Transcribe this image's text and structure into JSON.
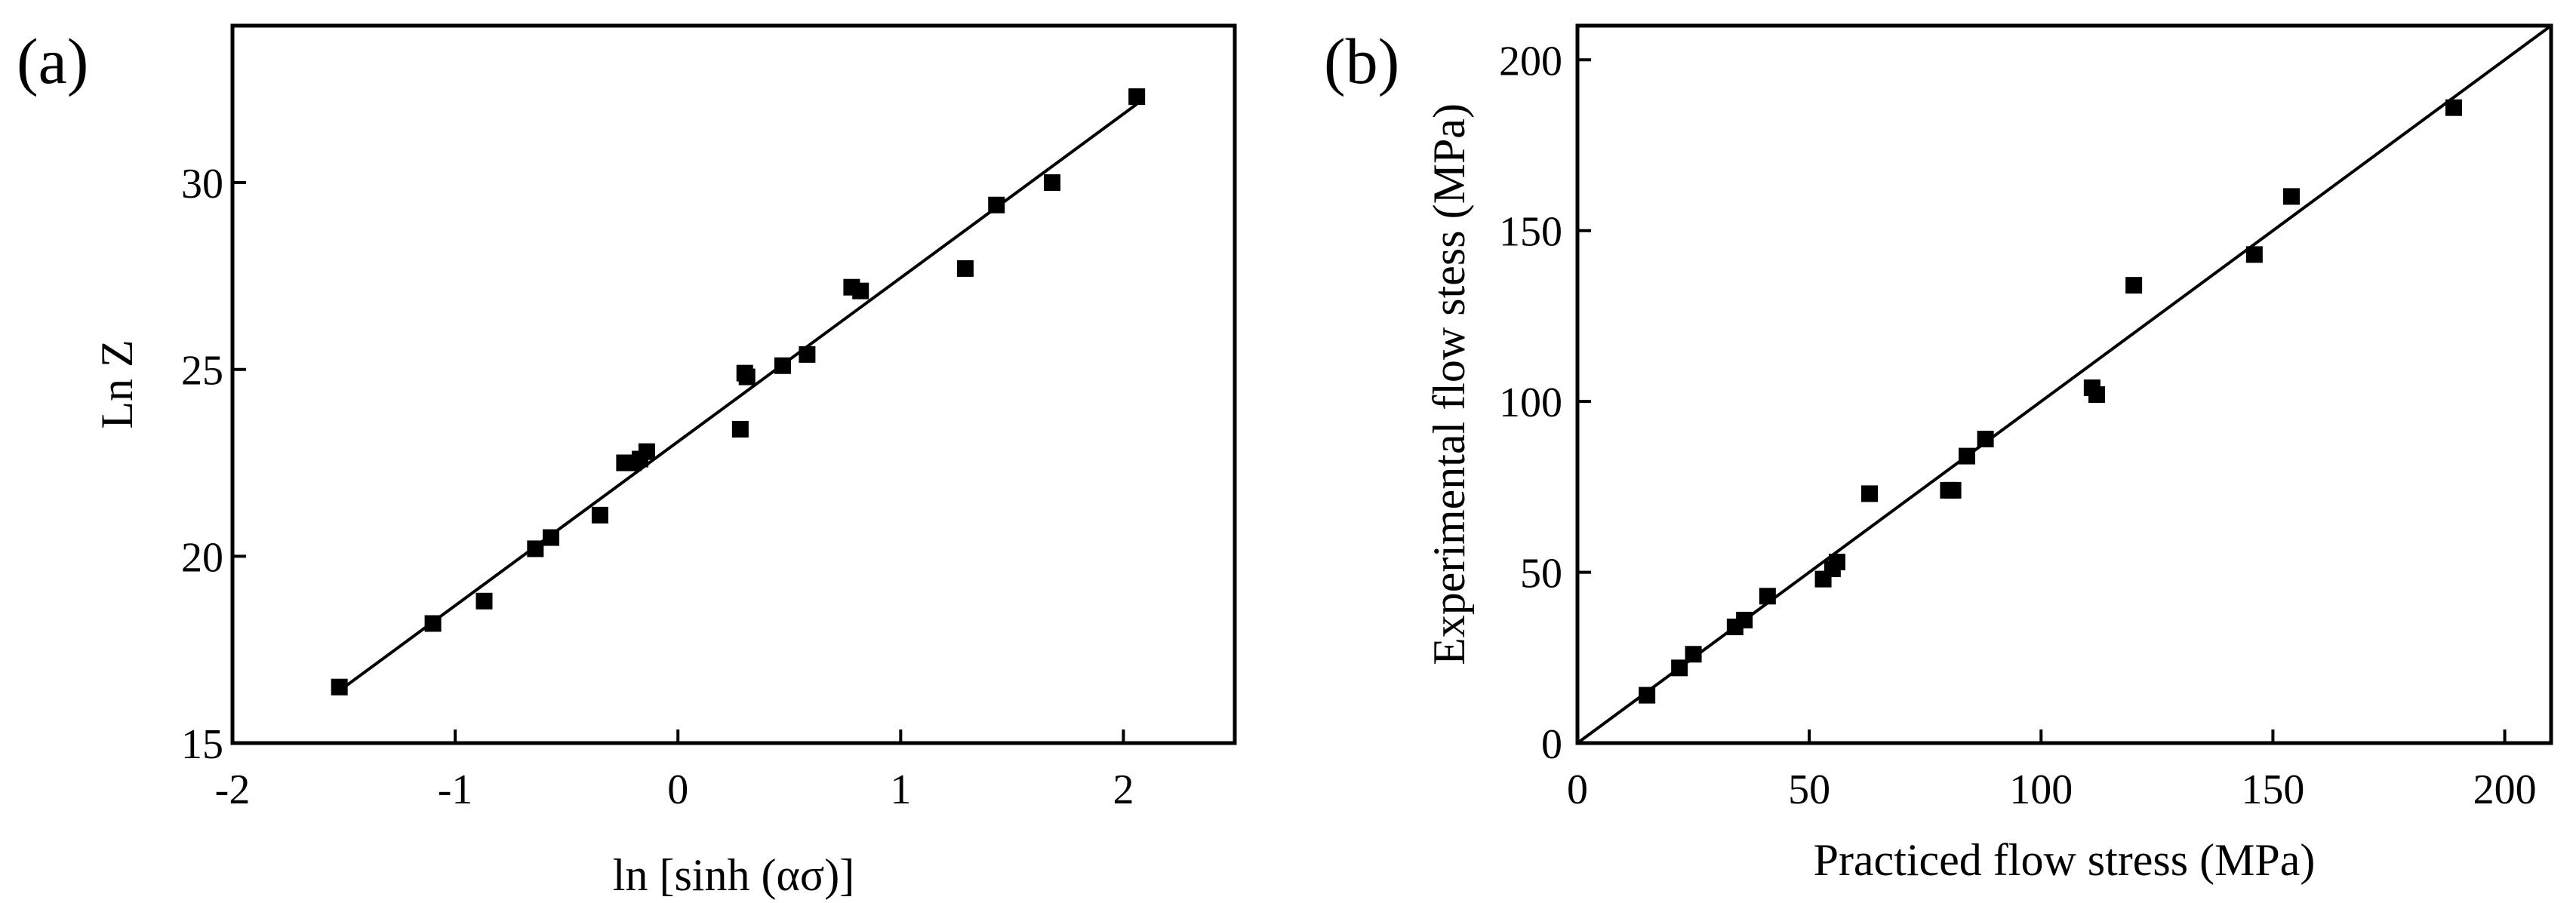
{
  "chart_data": [
    {
      "type": "scatter",
      "panel_label": "(a)",
      "title": "",
      "xlabel": "ln [sinh (ασ)]",
      "ylabel": "Ln Z",
      "xlim": [
        -2,
        2.5
      ],
      "ylim": [
        15,
        34.2
      ],
      "xticks": [
        -2,
        -1,
        0,
        1,
        2
      ],
      "xtick_labels": [
        "-2",
        "-1",
        "0",
        "1",
        "2"
      ],
      "yticks": [
        15,
        20,
        25,
        30
      ],
      "ytick_labels": [
        "15",
        "20",
        "25",
        "30"
      ],
      "grid": false,
      "legend": "none",
      "marker": "filled-square",
      "color": "#000000",
      "series": [
        {
          "points": [
            [
              -1.52,
              16.5
            ],
            [
              -1.1,
              18.2
            ],
            [
              -0.87,
              18.8
            ],
            [
              -0.64,
              20.2
            ],
            [
              -0.57,
              20.5
            ],
            [
              -0.35,
              21.1
            ],
            [
              -0.24,
              22.5
            ],
            [
              -0.2,
              22.5
            ],
            [
              -0.17,
              22.6
            ],
            [
              -0.14,
              22.8
            ],
            [
              0.28,
              23.4
            ],
            [
              0.3,
              24.9
            ],
            [
              0.31,
              24.8
            ],
            [
              0.47,
              25.1
            ],
            [
              0.58,
              25.4
            ],
            [
              0.78,
              27.2
            ],
            [
              0.82,
              27.1
            ],
            [
              1.29,
              27.7
            ],
            [
              1.43,
              29.4
            ],
            [
              1.68,
              30.0
            ],
            [
              2.06,
              32.3
            ]
          ]
        }
      ],
      "fit_line": [
        [
          -1.52,
          16.4
        ],
        [
          2.06,
          32.1
        ]
      ]
    },
    {
      "type": "scatter",
      "panel_label": "(b)",
      "title": "",
      "xlabel": "Practiced flow stress (MPa)",
      "ylabel": "Experimental flow stess (MPa)",
      "xlim": [
        0,
        210
      ],
      "ylim": [
        0,
        210
      ],
      "xticks": [
        0,
        50,
        100,
        150,
        200
      ],
      "xtick_labels": [
        "0",
        "50",
        "100",
        "150",
        "200"
      ],
      "yticks": [
        0,
        50,
        100,
        150,
        200
      ],
      "ytick_labels": [
        "0",
        "50",
        "100",
        "150",
        "200"
      ],
      "grid": false,
      "legend": "none",
      "marker": "filled-square",
      "color": "#000000",
      "series": [
        {
          "points": [
            [
              15,
              14
            ],
            [
              22,
              22
            ],
            [
              25,
              26
            ],
            [
              34,
              34
            ],
            [
              36,
              36
            ],
            [
              41,
              43
            ],
            [
              53,
              48
            ],
            [
              55,
              51
            ],
            [
              56,
              53
            ],
            [
              63,
              73
            ],
            [
              80,
              74
            ],
            [
              81,
              74
            ],
            [
              84,
              84
            ],
            [
              88,
              89
            ],
            [
              111,
              104
            ],
            [
              112,
              102
            ],
            [
              120,
              134
            ],
            [
              146,
              143
            ],
            [
              154,
              160
            ],
            [
              189,
              186
            ]
          ]
        }
      ],
      "fit_line": [
        [
          0,
          0
        ],
        [
          210,
          210
        ]
      ]
    }
  ]
}
